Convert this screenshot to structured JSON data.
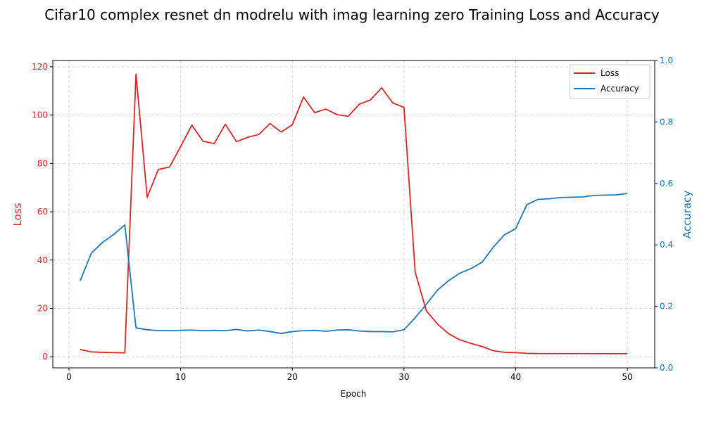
{
  "chart_data": {
    "type": "line",
    "title": "Cifar10 complex resnet dn modrelu with imag learning zero Training Loss and Accuracy",
    "xlabel": "Epoch",
    "ylabel_left": "Loss",
    "ylabel_right": "Accuracy",
    "xlim": [
      -1.45,
      52.45
    ],
    "ylim_left": [
      -4.6,
      122.6
    ],
    "ylim_right": [
      0,
      1
    ],
    "xticks": [
      0,
      10,
      20,
      30,
      40,
      50
    ],
    "yticks_left": [
      0,
      20,
      40,
      60,
      80,
      100,
      120
    ],
    "yticks_right": [
      0.0,
      0.2,
      0.4,
      0.6,
      0.8,
      1.0
    ],
    "grid": true,
    "legend_position": "upper right",
    "colors": {
      "loss": "#d62728",
      "accuracy": "#1f77b4"
    },
    "x": [
      1,
      2,
      3,
      4,
      5,
      6,
      7,
      8,
      9,
      10,
      11,
      12,
      13,
      14,
      15,
      16,
      17,
      18,
      19,
      20,
      21,
      22,
      23,
      24,
      25,
      26,
      27,
      28,
      29,
      30,
      31,
      32,
      33,
      34,
      35,
      36,
      37,
      38,
      39,
      40,
      41,
      42,
      43,
      44,
      45,
      46,
      47,
      48,
      49,
      50
    ],
    "series": [
      {
        "name": "Loss",
        "axis": "left",
        "values": [
          3.0,
          2.0,
          1.8,
          1.7,
          1.6,
          117.0,
          66.0,
          77.5,
          78.5,
          87.0,
          95.8,
          89.2,
          88.2,
          96.2,
          89.0,
          90.8,
          92.0,
          96.5,
          93.0,
          96.0,
          107.5,
          101.0,
          102.5,
          100.2,
          99.5,
          104.5,
          106.3,
          111.3,
          105.0,
          103.2,
          35.0,
          19.0,
          13.5,
          9.5,
          7.0,
          5.5,
          4.2,
          2.5,
          1.8,
          1.7,
          1.4,
          1.3,
          1.3,
          1.3,
          1.3,
          1.3,
          1.25,
          1.25,
          1.25,
          1.25
        ]
      },
      {
        "name": "Accuracy",
        "axis": "right",
        "values": [
          0.283,
          0.373,
          0.408,
          0.434,
          0.465,
          0.13,
          0.124,
          0.121,
          0.121,
          0.122,
          0.123,
          0.121,
          0.122,
          0.121,
          0.125,
          0.12,
          0.123,
          0.118,
          0.112,
          0.118,
          0.121,
          0.122,
          0.119,
          0.123,
          0.124,
          0.12,
          0.118,
          0.118,
          0.117,
          0.124,
          0.163,
          0.207,
          0.253,
          0.284,
          0.308,
          0.323,
          0.344,
          0.393,
          0.433,
          0.453,
          0.531,
          0.548,
          0.55,
          0.554,
          0.555,
          0.556,
          0.561,
          0.562,
          0.563,
          0.567
        ]
      }
    ]
  }
}
